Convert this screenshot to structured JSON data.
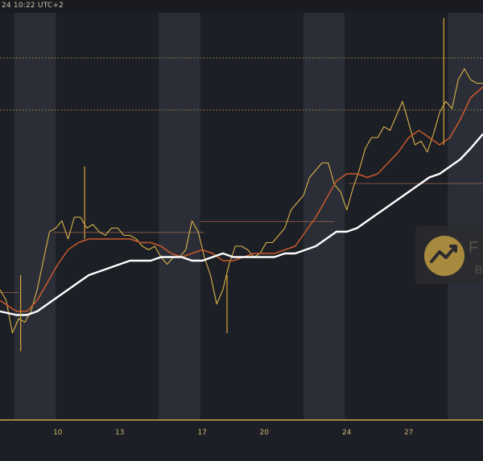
{
  "header": {
    "timestamp": "24 10:22 UTC+2"
  },
  "watermark": {
    "letter": "F",
    "sub": "B"
  },
  "chart_data": {
    "type": "line",
    "title": "",
    "xlabel": "",
    "ylabel": "",
    "x_tick_labels": [
      {
        "day": 10,
        "label": "10"
      },
      {
        "day": 13,
        "label": "13"
      },
      {
        "day": 17,
        "label": "17"
      },
      {
        "day": 20,
        "label": "20"
      },
      {
        "day": 24,
        "label": "24"
      },
      {
        "day": 27,
        "label": "27"
      }
    ],
    "xlim": [
      7.2,
      30.6
    ],
    "ylim": [
      0,
      100
    ],
    "weekend_bands": [
      [
        7.9,
        9.9
      ],
      [
        14.9,
        16.9
      ],
      [
        21.9,
        23.9
      ],
      [
        28.9,
        30.9
      ]
    ],
    "horizontal_levels": [
      {
        "value": 100,
        "color": "#a7893d",
        "style": "dashed"
      },
      {
        "value": 85.6,
        "color": "#a7893d",
        "style": "dashed"
      }
    ],
    "level_segments": [
      {
        "x0": 7.2,
        "x1": 8.1,
        "value": 35.2
      },
      {
        "x0": 9.8,
        "x1": 17.1,
        "value": 51.8
      },
      {
        "x0": 16.9,
        "x1": 23.4,
        "value": 54.8
      },
      {
        "x0": 24.1,
        "x1": 30.6,
        "value": 65.3
      }
    ],
    "spikes": [
      {
        "x": 8.2,
        "low": 19,
        "high": 40
      },
      {
        "x": 11.3,
        "low": 50,
        "high": 70
      },
      {
        "x": 18.2,
        "low": 24,
        "high": 40
      },
      {
        "x": 28.7,
        "low": 76,
        "high": 111
      }
    ],
    "series": [
      {
        "color": "#d9b44a",
        "x": [
          7.2,
          7.5,
          7.8,
          8.1,
          8.4,
          8.7,
          9.0,
          9.3,
          9.6,
          9.9,
          10.2,
          10.5,
          10.8,
          11.1,
          11.4,
          11.7,
          12.0,
          12.3,
          12.6,
          12.9,
          13.2,
          13.5,
          13.8,
          14.1,
          14.4,
          14.7,
          15.0,
          15.3,
          15.6,
          15.9,
          16.2,
          16.5,
          16.8,
          17.1,
          17.4,
          17.7,
          18.0,
          18.3,
          18.6,
          18.9,
          19.2,
          19.5,
          19.8,
          20.1,
          20.4,
          20.7,
          21.0,
          21.3,
          21.6,
          21.9,
          22.2,
          22.5,
          22.8,
          23.1,
          23.4,
          23.7,
          24.0,
          24.3,
          24.6,
          24.9,
          25.2,
          25.5,
          25.8,
          26.1,
          26.4,
          26.7,
          27.0,
          27.3,
          27.6,
          27.9,
          28.2,
          28.5,
          28.8,
          29.1,
          29.4,
          29.7,
          30.0,
          30.3,
          30.6
        ],
        "y": [
          36,
          33,
          24,
          28,
          27,
          30,
          36,
          44,
          52,
          53,
          55,
          50,
          56,
          56,
          53,
          54,
          52,
          51,
          53,
          53,
          51,
          51,
          50,
          48,
          47,
          48,
          45,
          43,
          45,
          45,
          47,
          55,
          52,
          45,
          40,
          32,
          36,
          43,
          48,
          48,
          47,
          45,
          46,
          49,
          49,
          51,
          53,
          58,
          60,
          62,
          67,
          69,
          71,
          71,
          65,
          63,
          58,
          64,
          69,
          75,
          78,
          78,
          81,
          80,
          84,
          88,
          82,
          76,
          77,
          74,
          79,
          85,
          88,
          86,
          94,
          97,
          94,
          93,
          93
        ]
      },
      {
        "color": "#c95a2c",
        "x": [
          7.2,
          8.0,
          8.5,
          9.0,
          9.5,
          10.0,
          10.5,
          11.0,
          11.5,
          12.0,
          12.5,
          13.0,
          13.5,
          14.0,
          14.5,
          15.0,
          15.5,
          16.0,
          16.5,
          17.0,
          17.5,
          18.0,
          18.5,
          19.0,
          19.5,
          20.0,
          20.5,
          21.0,
          21.5,
          22.0,
          22.5,
          23.0,
          23.5,
          24.0,
          24.5,
          25.0,
          25.5,
          26.0,
          26.5,
          27.0,
          27.5,
          28.0,
          28.5,
          29.0,
          29.5,
          30.0,
          30.6
        ],
        "y": [
          33,
          30,
          30,
          33,
          38,
          43,
          47,
          49,
          50,
          50,
          50,
          50,
          50,
          49,
          49,
          48,
          46,
          45,
          46,
          47,
          46,
          44,
          44,
          45,
          46,
          46,
          46,
          47,
          48,
          52,
          56,
          61,
          66,
          68,
          68,
          67,
          68,
          71,
          74,
          78,
          80,
          78,
          76,
          78,
          83,
          89,
          92
        ]
      },
      {
        "color": "#ffffff",
        "x": [
          7.2,
          8.0,
          8.5,
          9.0,
          9.5,
          10.0,
          10.5,
          11.0,
          11.5,
          12.0,
          12.5,
          13.0,
          13.5,
          14.0,
          14.5,
          15.0,
          15.5,
          16.0,
          16.5,
          17.0,
          17.5,
          18.0,
          18.5,
          19.0,
          19.5,
          20.0,
          20.5,
          21.0,
          21.5,
          22.0,
          22.5,
          23.0,
          23.5,
          24.0,
          24.5,
          25.0,
          25.5,
          26.0,
          26.5,
          27.0,
          27.5,
          28.0,
          28.5,
          29.0,
          29.5,
          30.0,
          30.6
        ],
        "y": [
          30,
          29,
          29,
          30,
          32,
          34,
          36,
          38,
          40,
          41,
          42,
          43,
          44,
          44,
          44,
          45,
          45,
          45,
          44,
          44,
          45,
          46,
          45,
          45,
          45,
          45,
          45,
          46,
          46,
          47,
          48,
          50,
          52,
          52,
          53,
          55,
          57,
          59,
          61,
          63,
          65,
          67,
          68,
          70,
          72,
          75,
          79
        ]
      }
    ]
  }
}
